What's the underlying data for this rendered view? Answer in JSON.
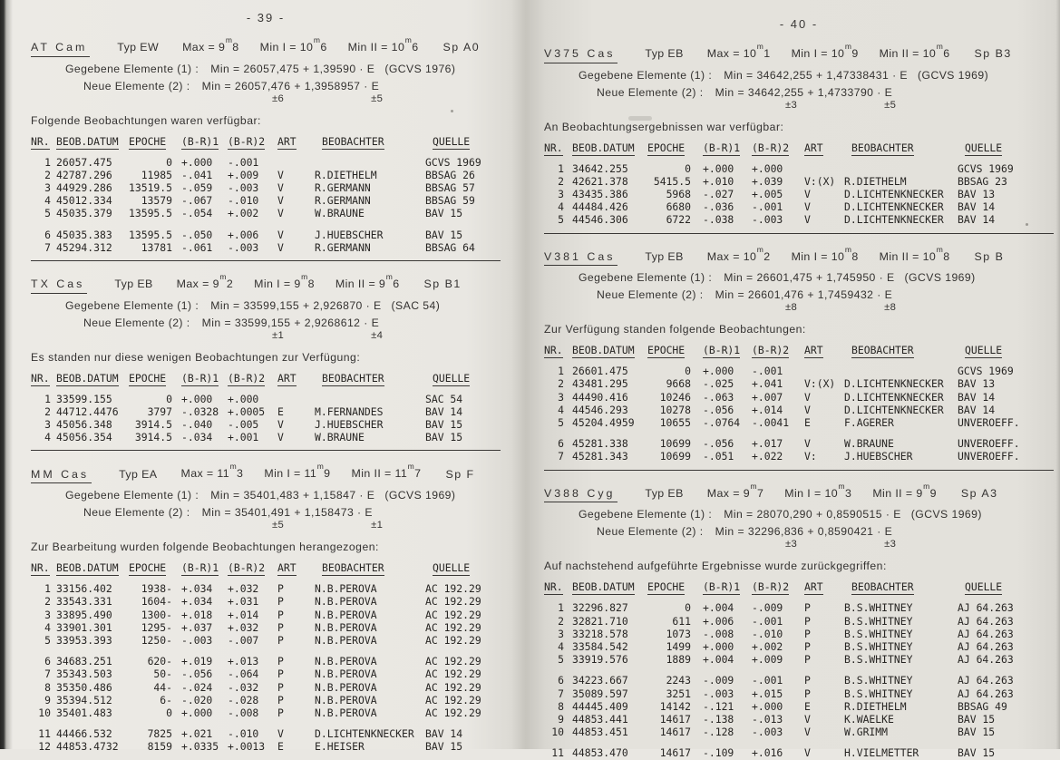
{
  "document": {
    "language": "German",
    "paper_color": "#e9e7e2",
    "ink_color": "#2e2c29"
  },
  "table_columns": [
    "NR.",
    "BEOB.DATUM",
    "EPOCHE",
    "(B-R)1",
    "(B-R)2",
    "ART",
    "BEOBACHTER",
    "QUELLE"
  ],
  "labels": {
    "max": "Max =",
    "min1": "Min I =",
    "min2": "Min II ="
  },
  "pages": [
    {
      "page_number": "- 39 -",
      "sections": [
        {
          "star": "AT Cam",
          "typ": "Typ EW",
          "max": "9m8",
          "min1": "10m6",
          "min2": "10m6",
          "sp": "Sp A0",
          "given_label": "Gegebene Elemente (1) :",
          "given_formula": "Min = 26057,475 + 1,39590 · E",
          "given_source": "(GCVS 1976)",
          "new_label": "Neue Elemente (2) :",
          "new_formula": "Min = 26057,476 + 1,3958957 · E",
          "err1": "±6",
          "err2": "±5",
          "intro": "Folgende Beobachtungen waren verfügbar:",
          "bottom_rule": true,
          "rows": [
            [
              "1",
              "26057.475",
              "0",
              "+.000",
              "-.001",
              "",
              "",
              "GCVS 1969"
            ],
            [
              "2",
              "42787.296",
              "11985",
              "-.041",
              "+.009",
              "V",
              "R.DIETHELM",
              "BBSAG 26"
            ],
            [
              "3",
              "44929.286",
              "13519.5",
              "-.059",
              "-.003",
              "V",
              "R.GERMANN",
              "BBSAG 57"
            ],
            [
              "4",
              "45012.334",
              "13579",
              "-.067",
              "-.010",
              "V",
              "R.GERMANN",
              "BBSAG 59"
            ],
            [
              "5",
              "45035.379",
              "13595.5",
              "-.054",
              "+.002",
              "V",
              "W.BRAUNE",
              "BAV 15"
            ],
            [
              "6",
              "45035.383",
              "13595.5",
              "-.050",
              "+.006",
              "V",
              "J.HUEBSCHER",
              "BAV 15"
            ],
            [
              "7",
              "45294.312",
              "13781",
              "-.061",
              "-.003",
              "V",
              "R.GERMANN",
              "BBSAG 64"
            ]
          ]
        },
        {
          "star": "TX Cas",
          "typ": "Typ EB",
          "max": "9m2",
          "min1": "9m8",
          "min2": "9m6",
          "sp": "Sp B1",
          "given_label": "Gegebene Elemente (1) :",
          "given_formula": "Min = 33599,155 + 2,926870 · E",
          "given_source": "(SAC 54)",
          "new_label": "Neue Elemente (2) :",
          "new_formula": "Min = 33599,155 + 2,9268612 · E",
          "err1": "±1",
          "err2": "±4",
          "intro": "Es standen nur diese wenigen Beobachtungen zur Verfügung:",
          "bottom_rule": true,
          "rows": [
            [
              "1",
              "33599.155",
              "0",
              "+.000",
              "+.000",
              "",
              "",
              "SAC 54"
            ],
            [
              "2",
              "44712.4476",
              "3797",
              "-.0328",
              "+.0005",
              "E",
              "M.FERNANDES",
              "BAV 14"
            ],
            [
              "3",
              "45056.348",
              "3914.5",
              "-.040",
              "-.005",
              "V",
              "J.HUEBSCHER",
              "BAV 15"
            ],
            [
              "4",
              "45056.354",
              "3914.5",
              "-.034",
              "+.001",
              "V",
              "W.BRAUNE",
              "BAV 15"
            ]
          ]
        },
        {
          "star": "MM Cas",
          "typ": "Typ EA",
          "max": "11m3",
          "min1": "11m9",
          "min2": "11m7",
          "sp": "Sp F",
          "given_label": "Gegebene Elemente (1) :",
          "given_formula": "Min = 35401,483 + 1,15847 · E",
          "given_source": "(GCVS 1969)",
          "new_label": "Neue Elemente (2) :",
          "new_formula": "Min = 35401,491 + 1,158473 · E",
          "err1": "±5",
          "err2": "±1",
          "intro": "Zur Bearbeitung wurden folgende Beobachtungen herangezogen:",
          "bottom_rule": false,
          "rows": [
            [
              "1",
              "33156.402",
              "1938-",
              "+.034",
              "+.032",
              "P",
              "N.B.PEROVA",
              "AC 192.29"
            ],
            [
              "2",
              "33543.331",
              "1604-",
              "+.034",
              "+.031",
              "P",
              "N.B.PEROVA",
              "AC 192.29"
            ],
            [
              "3",
              "33895.490",
              "1300-",
              "+.018",
              "+.014",
              "P",
              "N.B.PEROVA",
              "AC 192.29"
            ],
            [
              "4",
              "33901.301",
              "1295-",
              "+.037",
              "+.032",
              "P",
              "N.B.PEROVA",
              "AC 192.29"
            ],
            [
              "5",
              "33953.393",
              "1250-",
              "-.003",
              "-.007",
              "P",
              "N.B.PEROVA",
              "AC 192.29"
            ],
            [
              "6",
              "34683.251",
              "620-",
              "+.019",
              "+.013",
              "P",
              "N.B.PEROVA",
              "AC 192.29"
            ],
            [
              "7",
              "35343.503",
              "50-",
              "-.056",
              "-.064",
              "P",
              "N.B.PEROVA",
              "AC 192.29"
            ],
            [
              "8",
              "35350.486",
              "44-",
              "-.024",
              "-.032",
              "P",
              "N.B.PEROVA",
              "AC 192.29"
            ],
            [
              "9",
              "35394.512",
              "6-",
              "-.020",
              "-.028",
              "P",
              "N.B.PEROVA",
              "AC 192.29"
            ],
            [
              "10",
              "35401.483",
              "0",
              "+.000",
              "-.008",
              "P",
              "N.B.PEROVA",
              "AC 192.29"
            ],
            [
              "11",
              "44466.532",
              "7825",
              "+.021",
              "-.010",
              "V",
              "D.LICHTENKNECKER",
              "BAV 14"
            ],
            [
              "12",
              "44853.4732",
              "8159",
              "+.0335",
              "+.0013",
              "E",
              "E.HEISER",
              "BAV 15"
            ]
          ]
        }
      ]
    },
    {
      "page_number": "- 40 -",
      "sections": [
        {
          "star": "V375 Cas",
          "typ": "Typ EB",
          "max": "10m1",
          "min1": "10m9",
          "min2": "10m6",
          "sp": "Sp B3",
          "given_label": "Gegebene Elemente (1) :",
          "given_formula": "Min = 34642,255 + 1,47338431 · E",
          "given_source": "(GCVS 1969)",
          "new_label": "Neue Elemente (2) :",
          "new_formula": "Min = 34642,255 + 1,4733790 · E",
          "err1": "±3",
          "err2": "±5",
          "intro": "An Beobachtungsergebnissen war verfügbar:",
          "bottom_rule": true,
          "rows": [
            [
              "1",
              "34642.255",
              "0",
              "+.000",
              "+.000",
              "",
              "",
              "GCVS 1969"
            ],
            [
              "2",
              "42621.378",
              "5415.5",
              "+.010",
              "+.039",
              "V:(X)",
              "R.DIETHELM",
              "BBSAG 23"
            ],
            [
              "3",
              "43435.386",
              "5968",
              "-.027",
              "+.005",
              "V",
              "D.LICHTENKNECKER",
              "BAV 13"
            ],
            [
              "4",
              "44484.426",
              "6680",
              "-.036",
              "-.001",
              "V",
              "D.LICHTENKNECKER",
              "BAV 14"
            ],
            [
              "5",
              "44546.306",
              "6722",
              "-.038",
              "-.003",
              "V",
              "D.LICHTENKNECKER",
              "BAV 14"
            ]
          ]
        },
        {
          "star": "V381 Cas",
          "typ": "Typ EB",
          "max": "10m2",
          "min1": "10m8",
          "min2": "10m8",
          "sp": "Sp B",
          "given_label": "Gegebene Elemente (1) :",
          "given_formula": "Min = 26601,475 + 1,745950 · E",
          "given_source": "(GCVS 1969)",
          "new_label": "Neue Elemente (2) :",
          "new_formula": "Min = 26601,476 + 1,7459432 · E",
          "err1": "±8",
          "err2": "±8",
          "intro": "Zur Verfügung standen folgende Beobachtungen:",
          "bottom_rule": true,
          "rows": [
            [
              "1",
              "26601.475",
              "0",
              "+.000",
              "-.001",
              "",
              "",
              "GCVS 1969"
            ],
            [
              "2",
              "43481.295",
              "9668",
              "-.025",
              "+.041",
              "V:(X)",
              "D.LICHTENKNECKER",
              "BAV 13"
            ],
            [
              "3",
              "44490.416",
              "10246",
              "-.063",
              "+.007",
              "V",
              "D.LICHTENKNECKER",
              "BAV 14"
            ],
            [
              "4",
              "44546.293",
              "10278",
              "-.056",
              "+.014",
              "V",
              "D.LICHTENKNECKER",
              "BAV 14"
            ],
            [
              "5",
              "45204.4959",
              "10655",
              "-.0764",
              "-.0041",
              "E",
              "F.AGERER",
              "UNVEROEFF."
            ],
            [
              "6",
              "45281.338",
              "10699",
              "-.056",
              "+.017",
              "V",
              "W.BRAUNE",
              "UNVEROEFF."
            ],
            [
              "7",
              "45281.343",
              "10699",
              "-.051",
              "+.022",
              "V:",
              "J.HUEBSCHER",
              "UNVEROEFF."
            ]
          ]
        },
        {
          "star": "V388 Cyg",
          "typ": "Typ EB",
          "max": "9m7",
          "min1": "10m3",
          "min2": "9m9",
          "sp": "Sp A3",
          "given_label": "Gegebene Elemente (1) :",
          "given_formula": "Min = 28070,290 + 0,8590515 · E",
          "given_source": "(GCVS 1969)",
          "new_label": "Neue Elemente (2) :",
          "new_formula": "Min = 32296,836 + 0,8590421 · E",
          "err1": "±3",
          "err2": "±3",
          "intro": "Auf nachstehend aufgeführte Ergebnisse wurde zurückgegriffen:",
          "bottom_rule": false,
          "rows": [
            [
              "1",
              "32296.827",
              "0",
              "+.004",
              "-.009",
              "P",
              "B.S.WHITNEY",
              "AJ 64.263"
            ],
            [
              "2",
              "32821.710",
              "611",
              "+.006",
              "-.001",
              "P",
              "B.S.WHITNEY",
              "AJ 64.263"
            ],
            [
              "3",
              "33218.578",
              "1073",
              "-.008",
              "-.010",
              "P",
              "B.S.WHITNEY",
              "AJ 64.263"
            ],
            [
              "4",
              "33584.542",
              "1499",
              "+.000",
              "+.002",
              "P",
              "B.S.WHITNEY",
              "AJ 64.263"
            ],
            [
              "5",
              "33919.576",
              "1889",
              "+.004",
              "+.009",
              "P",
              "B.S.WHITNEY",
              "AJ 64.263"
            ],
            [
              "6",
              "34223.667",
              "2243",
              "-.009",
              "-.001",
              "P",
              "B.S.WHITNEY",
              "AJ 64.263"
            ],
            [
              "7",
              "35089.597",
              "3251",
              "-.003",
              "+.015",
              "P",
              "B.S.WHITNEY",
              "AJ 64.263"
            ],
            [
              "8",
              "44445.409",
              "14142",
              "-.121",
              "+.000",
              "E",
              "R.DIETHELM",
              "BBSAG 49"
            ],
            [
              "9",
              "44853.441",
              "14617",
              "-.138",
              "-.013",
              "V",
              "K.WAELKE",
              "BAV 15"
            ],
            [
              "10",
              "44853.451",
              "14617",
              "-.128",
              "-.003",
              "V",
              "W.GRIMM",
              "BAV 15"
            ],
            [
              "11",
              "44853.470",
              "14617",
              "-.109",
              "+.016",
              "V",
              "H.VIELMETTER",
              "BAV 15"
            ]
          ]
        }
      ]
    }
  ]
}
